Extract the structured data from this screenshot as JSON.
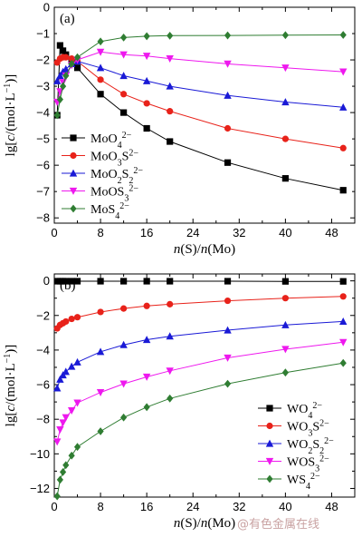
{
  "watermark": "@有色金属在线",
  "chart_data": [
    {
      "type": "line",
      "panel_label": "(a)",
      "xlabel": "n(S)/n(Mo)",
      "ylabel": "lg[c/(mol·L⁻¹)]",
      "xlim": [
        0,
        52
      ],
      "ylim": [
        -8.2,
        0
      ],
      "x_ticks": [
        0,
        8,
        16,
        24,
        32,
        40,
        48
      ],
      "y_ticks": [
        0,
        -2,
        -4,
        -6,
        -8
      ],
      "y_tick_labels": [
        "0",
        "−2",
        "−4",
        "−6",
        "−8"
      ],
      "minor_y_ticks": [
        -1,
        -3,
        -5,
        -7
      ],
      "y_label_extra": [
        {
          "value": -1,
          "label": "−1"
        },
        {
          "value": -3,
          "label": "−3"
        },
        {
          "value": -5,
          "label": "−5"
        },
        {
          "value": -7,
          "label": "−7"
        }
      ],
      "legend_position": "lower-left",
      "series": [
        {
          "name": "MoO4^2−",
          "label_parts": [
            [
              "MoO",
              ""
            ],
            [
              "4",
              "sub"
            ],
            [
              "2−",
              "sup"
            ]
          ],
          "color": "#000000",
          "marker": "square",
          "x": [
            0.5,
            1,
            1.5,
            2,
            3,
            4,
            8,
            12,
            16,
            20,
            30,
            40,
            50
          ],
          "y": [
            -4.1,
            -1.45,
            -1.65,
            -1.8,
            -2.05,
            -2.3,
            -3.3,
            -4.0,
            -4.6,
            -5.1,
            -5.9,
            -6.5,
            -6.95
          ]
        },
        {
          "name": "MoO3S^2−",
          "label_parts": [
            [
              "MoO",
              ""
            ],
            [
              "3",
              "sub"
            ],
            [
              "S",
              ""
            ],
            [
              "2−",
              "sup"
            ]
          ],
          "color": "#e8221a",
          "marker": "circle",
          "x": [
            0.5,
            1,
            1.5,
            2,
            3,
            4,
            8,
            12,
            16,
            20,
            30,
            40,
            50
          ],
          "y": [
            -2.1,
            -1.95,
            -1.9,
            -1.9,
            -1.95,
            -2.05,
            -2.75,
            -3.3,
            -3.65,
            -3.95,
            -4.6,
            -5.0,
            -5.35
          ]
        },
        {
          "name": "MoO2S2^2−",
          "label_parts": [
            [
              "MoO",
              ""
            ],
            [
              "2",
              "sub"
            ],
            [
              "S",
              ""
            ],
            [
              "2",
              "sub"
            ],
            [
              "2−",
              "sup"
            ]
          ],
          "color": "#1a1ad6",
          "marker": "triangle-up",
          "x": [
            0.5,
            1,
            1.5,
            2,
            3,
            4,
            8,
            12,
            16,
            20,
            30,
            40,
            50
          ],
          "y": [
            -2.8,
            -2.6,
            -2.45,
            -2.35,
            -2.15,
            -2.05,
            -2.3,
            -2.6,
            -2.8,
            -3.0,
            -3.35,
            -3.6,
            -3.8
          ]
        },
        {
          "name": "MoOS3^2−",
          "label_parts": [
            [
              "MoOS",
              ""
            ],
            [
              "3",
              "sub"
            ],
            [
              "2−",
              "sup"
            ]
          ],
          "color": "#ee18ee",
          "marker": "triangle-down",
          "x": [
            0.5,
            1,
            1.5,
            2,
            3,
            4,
            8,
            12,
            16,
            20,
            30,
            40,
            50
          ],
          "y": [
            -3.6,
            -3.2,
            -2.85,
            -2.6,
            -2.2,
            -2.0,
            -1.7,
            -1.8,
            -1.85,
            -1.95,
            -2.15,
            -2.3,
            -2.45
          ]
        },
        {
          "name": "MoS4^2−",
          "label_parts": [
            [
              "MoS",
              ""
            ],
            [
              "4",
              "sub"
            ],
            [
              "2−",
              "sup"
            ]
          ],
          "color": "#2f7d32",
          "marker": "diamond",
          "x": [
            0.5,
            1,
            1.5,
            2,
            3,
            4,
            8,
            12,
            16,
            20,
            30,
            40,
            50
          ],
          "y": [
            -4.1,
            -3.5,
            -3.0,
            -2.6,
            -2.15,
            -1.9,
            -1.3,
            -1.15,
            -1.1,
            -1.08,
            -1.07,
            -1.06,
            -1.05
          ]
        }
      ]
    },
    {
      "type": "line",
      "panel_label": "(b)",
      "xlabel": "n(S)/n(Mo)",
      "ylabel": "lg[c/(mol·L⁻¹)]",
      "xlim": [
        0,
        52
      ],
      "ylim": [
        -12.5,
        0.4
      ],
      "x_ticks": [
        0,
        8,
        16,
        24,
        32,
        40,
        48
      ],
      "y_ticks": [
        0,
        -2,
        -4,
        -6,
        -8,
        -10,
        -12
      ],
      "y_tick_labels": [
        "0",
        "−2",
        "−4",
        "−6",
        "−8",
        "−10",
        "−12"
      ],
      "minor_y_ticks": [
        -1,
        -3,
        -5,
        -7,
        -9,
        -11
      ],
      "legend_position": "lower-right",
      "series": [
        {
          "name": "WO4^2−",
          "label_parts": [
            [
              "WO",
              ""
            ],
            [
              "4",
              "sub"
            ],
            [
              "2−",
              "sup"
            ]
          ],
          "color": "#000000",
          "marker": "square",
          "x": [
            0.5,
            1,
            1.5,
            2,
            3,
            4,
            8,
            12,
            16,
            20,
            30,
            40,
            50
          ],
          "y": [
            -0.02,
            -0.02,
            -0.02,
            -0.02,
            -0.02,
            -0.02,
            -0.02,
            -0.02,
            -0.02,
            -0.02,
            -0.02,
            -0.03,
            -0.03
          ]
        },
        {
          "name": "WO3S^2−",
          "label_parts": [
            [
              "WO",
              ""
            ],
            [
              "3",
              "sub"
            ],
            [
              "S",
              ""
            ],
            [
              "2−",
              "sup"
            ]
          ],
          "color": "#e8221a",
          "marker": "circle",
          "x": [
            0.5,
            1,
            1.5,
            2,
            3,
            4,
            8,
            12,
            16,
            20,
            30,
            40,
            50
          ],
          "y": [
            -2.75,
            -2.55,
            -2.45,
            -2.35,
            -2.2,
            -2.1,
            -1.8,
            -1.6,
            -1.45,
            -1.35,
            -1.15,
            -1.0,
            -0.9
          ]
        },
        {
          "name": "WO2S2^2−",
          "label_parts": [
            [
              "WO",
              ""
            ],
            [
              "2",
              "sub"
            ],
            [
              "S",
              ""
            ],
            [
              "2",
              "sub"
            ],
            [
              "2−",
              "sup"
            ]
          ],
          "color": "#1a1ad6",
          "marker": "triangle-up",
          "x": [
            0.5,
            1,
            1.5,
            2,
            3,
            4,
            8,
            12,
            16,
            20,
            30,
            40,
            50
          ],
          "y": [
            -6.2,
            -5.7,
            -5.45,
            -5.25,
            -4.95,
            -4.7,
            -4.1,
            -3.7,
            -3.4,
            -3.2,
            -2.85,
            -2.55,
            -2.35
          ]
        },
        {
          "name": "WOS3^2−",
          "label_parts": [
            [
              "WOS",
              ""
            ],
            [
              "3",
              "sub"
            ],
            [
              "2−",
              "sup"
            ]
          ],
          "color": "#ee18ee",
          "marker": "triangle-down",
          "x": [
            0.5,
            1,
            1.5,
            2,
            3,
            4,
            8,
            12,
            16,
            20,
            30,
            40,
            50
          ],
          "y": [
            -9.3,
            -8.6,
            -8.2,
            -7.9,
            -7.5,
            -7.05,
            -6.45,
            -5.95,
            -5.55,
            -5.2,
            -4.45,
            -3.95,
            -3.55
          ]
        },
        {
          "name": "WS4^2−",
          "label_parts": [
            [
              "WS",
              ""
            ],
            [
              "4",
              "sub"
            ],
            [
              "2−",
              "sup"
            ]
          ],
          "color": "#2f7d32",
          "marker": "diamond",
          "x": [
            0.5,
            1,
            1.5,
            2,
            3,
            4,
            8,
            12,
            16,
            20,
            30,
            40,
            50
          ],
          "y": [
            -12.45,
            -11.5,
            -11.05,
            -10.65,
            -10.1,
            -9.6,
            -8.7,
            -7.9,
            -7.3,
            -6.8,
            -5.95,
            -5.3,
            -4.75
          ]
        }
      ]
    }
  ]
}
